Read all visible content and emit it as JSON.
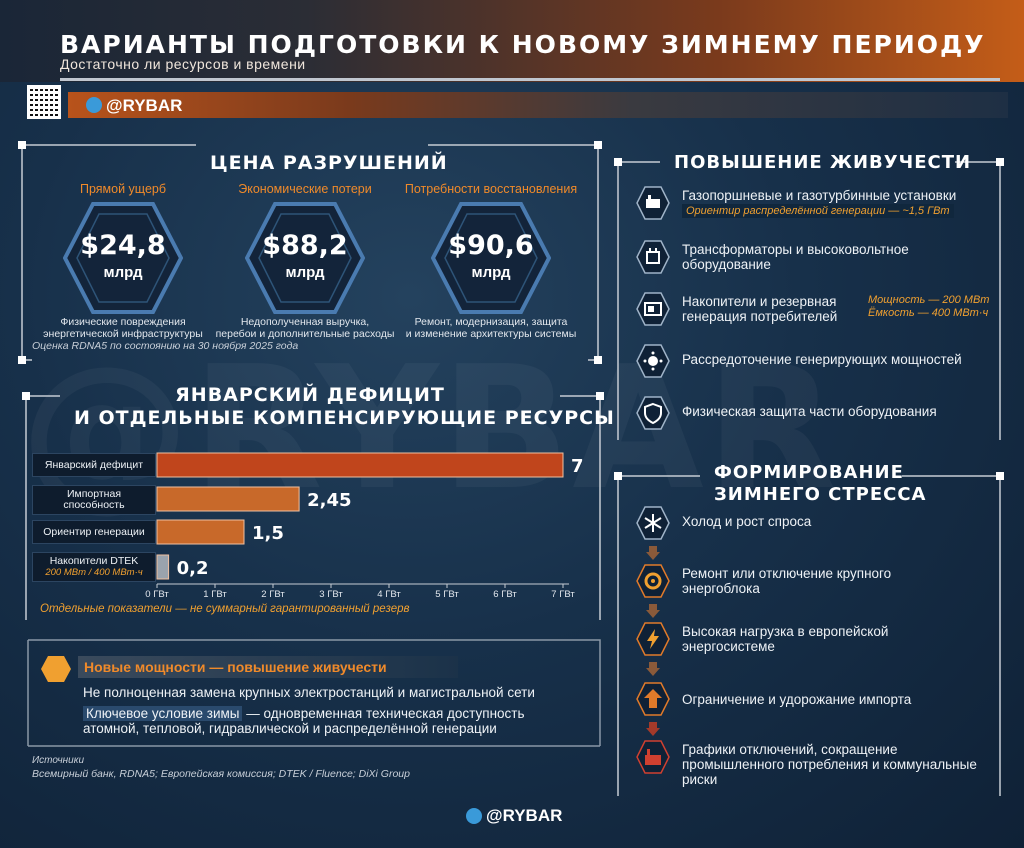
{
  "header": {
    "title": "ВАРИАНТЫ ПОДГОТОВКИ К НОВОМУ ЗИМНЕМУ ПЕРИОДУ",
    "subtitle": "Достаточно ли ресурсов и времени",
    "handle": "@RYBAR"
  },
  "watermark": "@RYBAR",
  "cost": {
    "title": "ЦЕНА РАЗРУШЕНИЙ",
    "items": [
      {
        "label": "Прямой ущерб",
        "value": "$24,8",
        "unit": "млрд",
        "desc1": "Физические повреждения",
        "desc2": "энергетической инфраструктуры"
      },
      {
        "label": "Экономические потери",
        "value": "$88,2",
        "unit": "млрд",
        "desc1": "Недополученная выручка,",
        "desc2": "перебои и дополнительные расходы"
      },
      {
        "label": "Потребности восстановления",
        "value": "$90,6",
        "unit": "млрд",
        "desc1": "Ремонт, модернизация, защита",
        "desc2": "и изменение архитектуры системы"
      }
    ],
    "note": "Оценка RDNA5 по состоянию на 30 ноября 2025 года"
  },
  "chart_data": {
    "type": "bar",
    "orientation": "horizontal",
    "title": "ЯНВАРСКИЙ ДЕФИЦИТ",
    "subtitle": "И ОТДЕЛЬНЫЕ КОМПЕНСИРУЮЩИЕ РЕСУРСЫ",
    "categories": [
      "Январский дефицит",
      "Импортная способность",
      "Ориентир генерации",
      "Накопители DTEK"
    ],
    "category_lines": [
      [
        "Январский дефицит"
      ],
      [
        "Импортная",
        "способность"
      ],
      [
        "Ориентир генерации"
      ],
      [
        "Накопители DTEK"
      ]
    ],
    "category_sub": [
      "",
      "",
      "",
      "200 МВт / 400 МВт·ч"
    ],
    "values": [
      7,
      2.45,
      1.5,
      0.2
    ],
    "value_labels": [
      "7",
      "2,45",
      "1,5",
      "0,2"
    ],
    "colors": [
      "#c0451c",
      "#c8692a",
      "#c8692a",
      "#9aa3ad"
    ],
    "xlim": [
      0,
      7
    ],
    "xticks": [
      "0 ГВт",
      "1 ГВт",
      "2 ГВт",
      "3 ГВт",
      "4 ГВт",
      "5 ГВт",
      "6 ГВт",
      "7 ГВт"
    ],
    "footnote": "Отдельные показатели — не суммарный гарантированный резерв"
  },
  "new_capacity": {
    "title": "Новые мощности — повышение живучести",
    "line1": "Не полноценная замена крупных электростанций и магистральной сети",
    "key": "Ключевое условие зимы",
    "line2": " — одновременная техническая доступность атомной, тепловой, гидравлической и распределённой генерации"
  },
  "sources": {
    "heading": "Источники",
    "text": "Всемирный банк, RDNA5; Европейская комиссия; DTEK / Fluence; DiXi Group"
  },
  "resilience": {
    "title": "ПОВЫШЕНИЕ ЖИВУЧЕСТИ",
    "items": [
      {
        "icon": "gas-turbine-icon",
        "text": "Газопоршневые и газотурбинные установки",
        "sub": "Ориентир распределённой генерации — ~1,5 ГВт"
      },
      {
        "icon": "transformer-icon",
        "text": "Трансформаторы и высоковольтное оборудование"
      },
      {
        "icon": "battery-icon",
        "text": "Накопители и резервная генерация потребителей",
        "note1": "Мощность — 200 МВт",
        "note2": "Ёмкость — 400 МВт·ч"
      },
      {
        "icon": "distributed-power-icon",
        "text": "Рассредоточение генерирующих мощностей"
      },
      {
        "icon": "shield-icon",
        "text": "Физическая защита части оборудования"
      }
    ]
  },
  "stress": {
    "title1": "ФОРМИРОВАНИЕ",
    "title2": "ЗИМНЕГО СТРЕССА",
    "items": [
      {
        "icon": "snowflake-icon",
        "text": "Холод и рост спроса"
      },
      {
        "icon": "repair-gear-icon",
        "text": "Ремонт или отключение крупного энергоблока"
      },
      {
        "icon": "lightning-icon",
        "text": "Высокая нагрузка в европейской энергосистеме"
      },
      {
        "icon": "price-up-icon",
        "text": "Ограничение и удорожание импорта"
      },
      {
        "icon": "outage-factory-icon",
        "text": "Графики отключений, сокращение промышленного потребления и коммунальные риски"
      }
    ]
  },
  "colors": {
    "accent": "#f08a2a",
    "bar_main": "#c0451c",
    "bar": "#c8692a",
    "bar_gray": "#9aa3ad",
    "background": "#17304a"
  }
}
